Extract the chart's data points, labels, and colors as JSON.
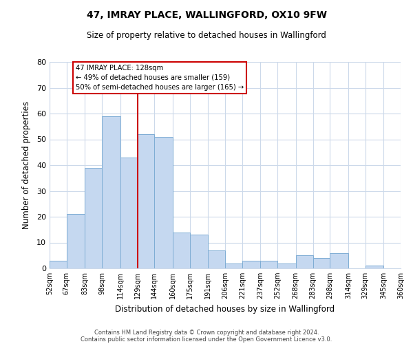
{
  "title": "47, IMRAY PLACE, WALLINGFORD, OX10 9FW",
  "subtitle": "Size of property relative to detached houses in Wallingford",
  "xlabel": "Distribution of detached houses by size in Wallingford",
  "ylabel": "Number of detached properties",
  "bar_color": "#c5d8f0",
  "bar_edge_color": "#7eadd4",
  "bins": [
    52,
    67,
    83,
    98,
    114,
    129,
    144,
    160,
    175,
    191,
    206,
    221,
    237,
    252,
    268,
    283,
    298,
    314,
    329,
    345,
    360
  ],
  "counts": [
    3,
    21,
    39,
    59,
    43,
    52,
    51,
    14,
    13,
    7,
    2,
    3,
    3,
    2,
    5,
    4,
    6,
    0,
    1,
    0
  ],
  "tick_labels": [
    "52sqm",
    "67sqm",
    "83sqm",
    "98sqm",
    "114sqm",
    "129sqm",
    "144sqm",
    "160sqm",
    "175sqm",
    "191sqm",
    "206sqm",
    "221sqm",
    "237sqm",
    "252sqm",
    "268sqm",
    "283sqm",
    "298sqm",
    "314sqm",
    "329sqm",
    "345sqm",
    "360sqm"
  ],
  "vline_x": 129,
  "vline_color": "#cc0000",
  "annotation_title": "47 IMRAY PLACE: 128sqm",
  "annotation_line1": "← 49% of detached houses are smaller (159)",
  "annotation_line2": "50% of semi-detached houses are larger (165) →",
  "annotation_box_color": "#ffffff",
  "annotation_box_edge_color": "#cc0000",
  "ylim": [
    0,
    80
  ],
  "yticks": [
    0,
    10,
    20,
    30,
    40,
    50,
    60,
    70,
    80
  ],
  "footer1": "Contains HM Land Registry data © Crown copyright and database right 2024.",
  "footer2": "Contains public sector information licensed under the Open Government Licence v3.0.",
  "background_color": "#ffffff",
  "grid_color": "#ccd9ea"
}
